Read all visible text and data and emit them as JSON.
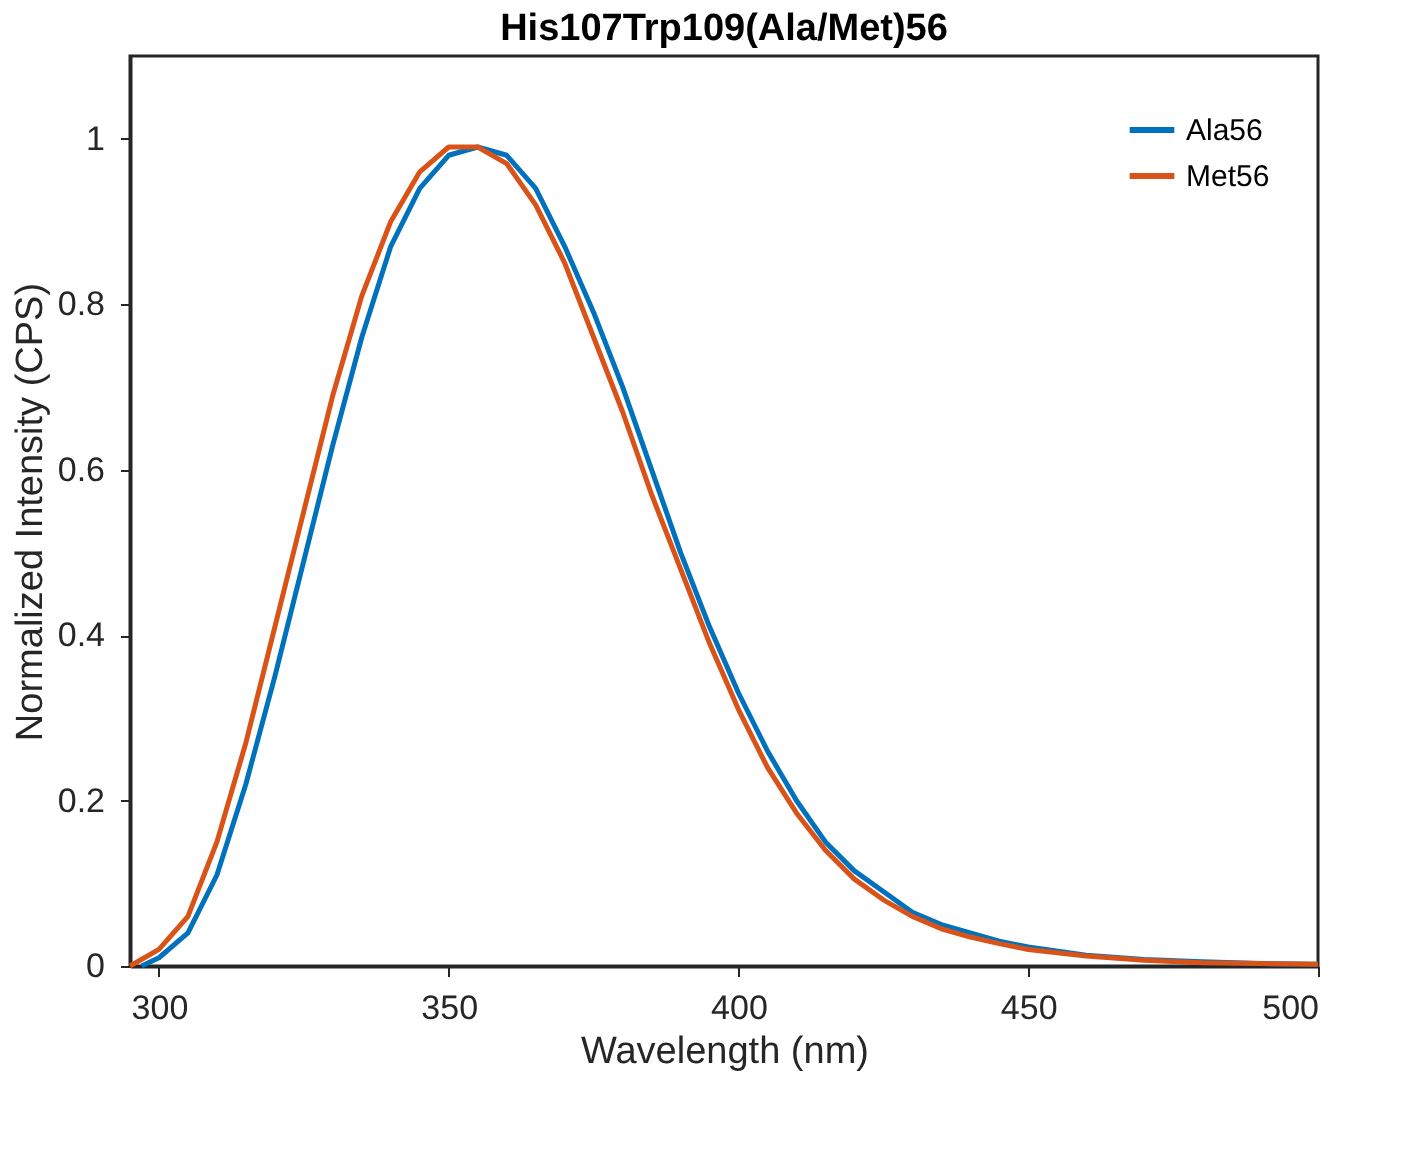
{
  "chart_data": {
    "type": "line",
    "title": "His107Trp109(Ala/Met)56",
    "xlabel": "Wavelength (nm)",
    "ylabel": "Normalized Intensity (CPS)",
    "xlim": [
      295,
      500
    ],
    "xticks": [
      300,
      350,
      400,
      450,
      500
    ],
    "ylim": [
      0,
      1.1
    ],
    "yticks": [
      0,
      0.2,
      0.4,
      0.6,
      0.8,
      1
    ],
    "grid": false,
    "legend": "top right",
    "line_style": "solid",
    "marker": "none",
    "series": [
      {
        "name": "Ala56",
        "color": "#0072bd",
        "x": [
          297,
          300,
          305,
          310,
          315,
          320,
          325,
          330,
          335,
          340,
          345,
          350,
          355,
          360,
          365,
          370,
          375,
          380,
          385,
          390,
          395,
          400,
          405,
          410,
          415,
          420,
          425,
          430,
          435,
          440,
          445,
          450,
          460,
          470,
          480,
          490,
          500
        ],
        "values": [
          0,
          0.01,
          0.04,
          0.11,
          0.22,
          0.35,
          0.49,
          0.63,
          0.76,
          0.87,
          0.94,
          0.98,
          0.99,
          0.98,
          0.94,
          0.87,
          0.79,
          0.7,
          0.6,
          0.5,
          0.41,
          0.33,
          0.26,
          0.2,
          0.15,
          0.115,
          0.09,
          0.065,
          0.05,
          0.04,
          0.03,
          0.023,
          0.013,
          0.008,
          0.005,
          0.003,
          0.002
        ]
      },
      {
        "name": "Met56",
        "color": "#d95319",
        "x": [
          295,
          300,
          305,
          310,
          315,
          320,
          325,
          330,
          335,
          340,
          345,
          350,
          355,
          360,
          365,
          370,
          375,
          380,
          385,
          390,
          395,
          400,
          405,
          410,
          415,
          420,
          425,
          430,
          435,
          440,
          445,
          450,
          460,
          470,
          480,
          490,
          500
        ],
        "values": [
          0,
          0.02,
          0.06,
          0.15,
          0.27,
          0.41,
          0.55,
          0.69,
          0.81,
          0.9,
          0.96,
          0.99,
          0.99,
          0.97,
          0.92,
          0.85,
          0.76,
          0.67,
          0.57,
          0.48,
          0.39,
          0.31,
          0.24,
          0.185,
          0.14,
          0.105,
          0.08,
          0.06,
          0.045,
          0.035,
          0.027,
          0.02,
          0.012,
          0.007,
          0.004,
          0.003,
          0.002
        ]
      }
    ]
  }
}
